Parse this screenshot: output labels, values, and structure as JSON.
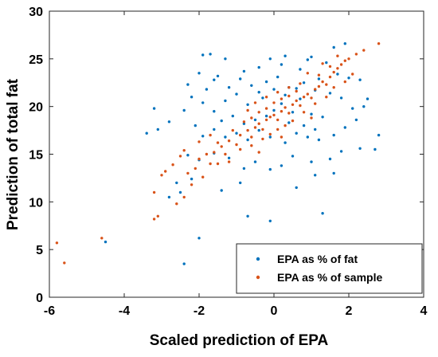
{
  "chart_data": {
    "type": "scatter",
    "xlabel": "Scaled prediction of EPA",
    "ylabel": "Prediction of total fat",
    "xlim": [
      -6,
      4
    ],
    "ylim": [
      0,
      30
    ],
    "xticks": [
      -6,
      -4,
      -2,
      0,
      2,
      4
    ],
    "yticks": [
      0,
      5,
      10,
      15,
      20,
      25,
      30
    ],
    "grid": false,
    "legend_position": "bottom-right",
    "series": [
      {
        "name": "EPA as % of fat",
        "color": "#0072BD",
        "points": [
          [
            -4.5,
            5.8
          ],
          [
            -2.4,
            3.5
          ],
          [
            -2.0,
            6.2
          ],
          [
            -0.1,
            8.0
          ],
          [
            -0.7,
            8.5
          ],
          [
            1.3,
            8.8
          ],
          [
            -1.9,
            25.4
          ],
          [
            -1.7,
            25.5
          ],
          [
            -1.3,
            25.0
          ],
          [
            0.3,
            25.3
          ],
          [
            1.0,
            25.2
          ],
          [
            1.6,
            26.2
          ],
          [
            1.9,
            26.6
          ],
          [
            -2.0,
            23.5
          ],
          [
            -1.6,
            22.8
          ],
          [
            -1.2,
            22.0
          ],
          [
            -0.8,
            23.7
          ],
          [
            -0.4,
            24.1
          ],
          [
            0.2,
            24.4
          ],
          [
            0.7,
            23.9
          ],
          [
            1.4,
            24.6
          ],
          [
            2.3,
            22.8
          ],
          [
            2.5,
            20.8
          ],
          [
            2.4,
            20.0
          ],
          [
            2.8,
            17.0
          ],
          [
            2.7,
            15.5
          ],
          [
            2.3,
            15.6
          ],
          [
            1.8,
            15.3
          ],
          [
            1.5,
            14.5
          ],
          [
            1.0,
            14.2
          ],
          [
            0.5,
            14.8
          ],
          [
            0.2,
            13.8
          ],
          [
            -0.1,
            13.4
          ],
          [
            -0.5,
            14.2
          ],
          [
            -0.8,
            13.5
          ],
          [
            -1.2,
            14.6
          ],
          [
            -1.6,
            15.1
          ],
          [
            -2.0,
            14.4
          ],
          [
            -2.3,
            14.9
          ],
          [
            -2.6,
            12.0
          ],
          [
            -2.2,
            12.4
          ],
          [
            -2.5,
            11.0
          ],
          [
            -2.8,
            10.5
          ],
          [
            -1.4,
            11.2
          ],
          [
            -0.9,
            12.0
          ],
          [
            0.6,
            11.5
          ],
          [
            1.1,
            12.8
          ],
          [
            1.6,
            13.0
          ],
          [
            -3.2,
            19.8
          ],
          [
            -3.1,
            17.6
          ],
          [
            -3.4,
            17.2
          ],
          [
            -2.8,
            18.4
          ],
          [
            -2.4,
            19.6
          ],
          [
            -2.2,
            21.0
          ],
          [
            -1.9,
            20.4
          ],
          [
            -1.6,
            19.5
          ],
          [
            -1.3,
            20.6
          ],
          [
            -1.0,
            21.3
          ],
          [
            -0.7,
            20.2
          ],
          [
            -0.4,
            21.5
          ],
          [
            -0.2,
            22.6
          ],
          [
            0.1,
            23.1
          ],
          [
            0.4,
            22.0
          ],
          [
            0.8,
            22.5
          ],
          [
            1.1,
            21.7
          ],
          [
            1.5,
            21.4
          ],
          [
            1.8,
            20.9
          ],
          [
            2.1,
            19.8
          ],
          [
            2.2,
            18.6
          ],
          [
            1.9,
            17.8
          ],
          [
            1.6,
            17.0
          ],
          [
            1.2,
            16.5
          ],
          [
            0.9,
            16.8
          ],
          [
            0.6,
            17.2
          ],
          [
            0.3,
            16.2
          ],
          [
            -0.1,
            16.8
          ],
          [
            -0.4,
            17.5
          ],
          [
            -0.7,
            16.5
          ],
          [
            -1.0,
            17.2
          ],
          [
            -1.3,
            16.8
          ],
          [
            -1.6,
            17.6
          ],
          [
            -1.9,
            16.9
          ],
          [
            -2.1,
            18.0
          ],
          [
            -0.2,
            19.0
          ],
          [
            0.0,
            19.6
          ],
          [
            0.2,
            20.3
          ],
          [
            0.5,
            19.4
          ],
          [
            0.7,
            20.8
          ],
          [
            1.0,
            19.2
          ],
          [
            1.3,
            18.9
          ],
          [
            -0.5,
            18.6
          ],
          [
            -0.8,
            18.2
          ],
          [
            -1.1,
            19.0
          ],
          [
            -1.4,
            18.5
          ],
          [
            0.4,
            18.3
          ],
          [
            0.8,
            18.0
          ],
          [
            1.1,
            17.6
          ],
          [
            -0.3,
            20.9
          ],
          [
            0.0,
            21.8
          ],
          [
            0.3,
            21.2
          ],
          [
            0.6,
            21.9
          ],
          [
            -0.6,
            22.2
          ],
          [
            -0.9,
            22.9
          ],
          [
            1.2,
            22.9
          ],
          [
            1.7,
            23.4
          ],
          [
            2.0,
            23.0
          ],
          [
            -1.8,
            21.8
          ],
          [
            -1.5,
            23.2
          ],
          [
            -2.3,
            22.3
          ],
          [
            0.9,
            24.9
          ],
          [
            -0.1,
            25.0
          ]
        ]
      },
      {
        "name": "EPA as % of sample",
        "color": "#D95319",
        "points": [
          [
            -5.8,
            5.7
          ],
          [
            -5.6,
            3.6
          ],
          [
            -4.6,
            6.2
          ],
          [
            -3.2,
            8.2
          ],
          [
            -3.1,
            8.5
          ],
          [
            -3.2,
            11.0
          ],
          [
            -3.0,
            12.8
          ],
          [
            -2.9,
            13.2
          ],
          [
            -2.7,
            13.9
          ],
          [
            -2.5,
            14.8
          ],
          [
            -2.3,
            13.0
          ],
          [
            -2.1,
            13.5
          ],
          [
            -1.9,
            12.6
          ],
          [
            -1.7,
            14.0
          ],
          [
            -1.6,
            15.2
          ],
          [
            -1.4,
            15.8
          ],
          [
            -1.2,
            16.4
          ],
          [
            -1.0,
            16.0
          ],
          [
            -0.9,
            17.0
          ],
          [
            -0.7,
            17.5
          ],
          [
            -0.6,
            16.8
          ],
          [
            -0.5,
            17.8
          ],
          [
            -0.4,
            18.2
          ],
          [
            -0.3,
            17.6
          ],
          [
            -0.2,
            18.6
          ],
          [
            -0.1,
            18.9
          ],
          [
            0.0,
            19.1
          ],
          [
            0.1,
            18.6
          ],
          [
            0.2,
            19.5
          ],
          [
            0.3,
            19.9
          ],
          [
            0.4,
            19.3
          ],
          [
            0.5,
            20.2
          ],
          [
            0.6,
            20.6
          ],
          [
            0.7,
            20.1
          ],
          [
            0.8,
            21.0
          ],
          [
            0.9,
            21.3
          ],
          [
            1.0,
            20.9
          ],
          [
            1.1,
            21.8
          ],
          [
            1.2,
            22.1
          ],
          [
            1.3,
            22.6
          ],
          [
            1.4,
            22.3
          ],
          [
            1.5,
            23.1
          ],
          [
            1.6,
            23.6
          ],
          [
            1.7,
            24.0
          ],
          [
            1.8,
            24.4
          ],
          [
            1.9,
            24.8
          ],
          [
            2.0,
            25.0
          ],
          [
            2.2,
            25.5
          ],
          [
            2.4,
            25.9
          ],
          [
            2.8,
            26.6
          ],
          [
            1.3,
            24.5
          ],
          [
            1.7,
            25.3
          ],
          [
            0.9,
            23.5
          ],
          [
            1.6,
            22.0
          ],
          [
            1.9,
            22.6
          ],
          [
            2.1,
            23.4
          ],
          [
            -2.4,
            10.5
          ],
          [
            -2.6,
            9.8
          ],
          [
            -2.2,
            11.8
          ],
          [
            -2.0,
            14.5
          ],
          [
            -1.8,
            15.0
          ],
          [
            -1.5,
            16.2
          ],
          [
            -1.3,
            15.0
          ],
          [
            -1.1,
            17.5
          ],
          [
            -0.8,
            18.4
          ],
          [
            -0.6,
            18.8
          ],
          [
            -0.4,
            19.4
          ],
          [
            -0.2,
            19.8
          ],
          [
            0.0,
            20.4
          ],
          [
            0.2,
            20.8
          ],
          [
            0.4,
            21.1
          ],
          [
            0.6,
            21.6
          ],
          [
            0.8,
            19.4
          ],
          [
            1.0,
            18.8
          ],
          [
            0.5,
            18.5
          ],
          [
            0.3,
            18.0
          ],
          [
            0.1,
            17.6
          ],
          [
            -0.1,
            17.1
          ],
          [
            -0.3,
            16.6
          ],
          [
            -0.6,
            15.9
          ],
          [
            -0.9,
            15.5
          ],
          [
            -1.2,
            14.2
          ],
          [
            -1.5,
            14.0
          ],
          [
            -2.4,
            15.4
          ],
          [
            -2.0,
            16.3
          ],
          [
            -1.7,
            17.0
          ],
          [
            -0.7,
            19.6
          ],
          [
            -0.5,
            20.4
          ],
          [
            -0.2,
            21.0
          ],
          [
            0.1,
            21.5
          ],
          [
            0.4,
            22.0
          ],
          [
            0.7,
            22.4
          ],
          [
            1.2,
            23.3
          ],
          [
            1.5,
            24.2
          ],
          [
            1.1,
            20.3
          ],
          [
            1.4,
            21.0
          ],
          [
            0.2,
            16.8
          ],
          [
            -0.4,
            15.2
          ]
        ]
      }
    ]
  }
}
